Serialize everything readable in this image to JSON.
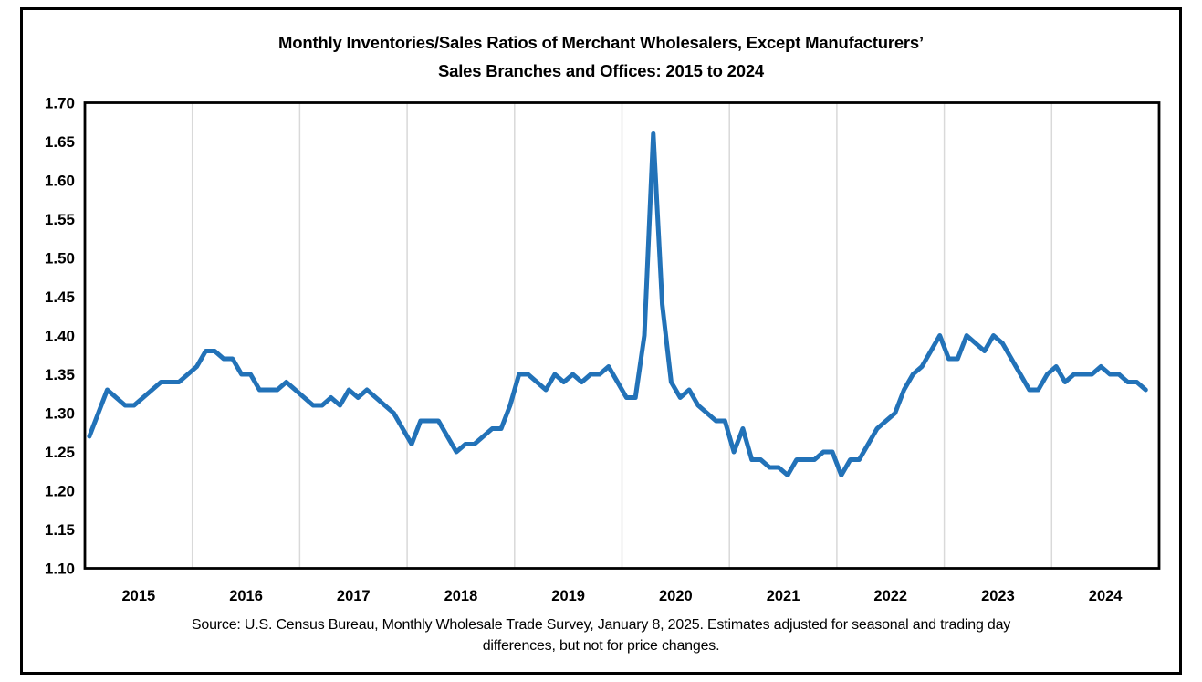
{
  "figure": {
    "title_line1": "Monthly Inventories/Sales Ratios of Merchant Wholesalers, Except Manufacturers’",
    "title_line2": "Sales Branches and Offices: 2015 to 2024",
    "source_line1": "Source: U.S. Census Bureau, Monthly Wholesale Trade Survey, January 8, 2025. Estimates adjusted for seasonal and trading day",
    "source_line2": "differences, but not for price changes."
  },
  "chart_data": {
    "type": "line",
    "title": "Monthly Inventories/Sales Ratios of Merchant Wholesalers, Except Manufacturers’ Sales Branches and Offices: 2015 to 2024",
    "xlabel": "",
    "ylabel": "",
    "ylim": [
      1.1,
      1.7
    ],
    "ytick_step": 0.05,
    "y_ticks": [
      "1.70",
      "1.65",
      "1.60",
      "1.55",
      "1.50",
      "1.45",
      "1.40",
      "1.35",
      "1.30",
      "1.25",
      "1.20",
      "1.15",
      "1.10"
    ],
    "x_ticks": [
      "2015",
      "2016",
      "2017",
      "2018",
      "2019",
      "2020",
      "2021",
      "2022",
      "2023",
      "2024"
    ],
    "grid": "vertical-year-gridlines",
    "legend": "none",
    "line_color": "#2272B8",
    "grid_color": "#D9D9D9",
    "frame_color": "#000000",
    "start_month": "2015-01",
    "end_month": "2024-11",
    "series": [
      {
        "name": "Inventories/Sales Ratio",
        "values": [
          1.27,
          1.3,
          1.33,
          1.32,
          1.31,
          1.31,
          1.32,
          1.33,
          1.34,
          1.34,
          1.34,
          1.35,
          1.36,
          1.38,
          1.38,
          1.37,
          1.37,
          1.35,
          1.35,
          1.33,
          1.33,
          1.33,
          1.34,
          1.33,
          1.32,
          1.31,
          1.31,
          1.32,
          1.31,
          1.33,
          1.32,
          1.33,
          1.32,
          1.31,
          1.3,
          1.28,
          1.26,
          1.29,
          1.29,
          1.29,
          1.27,
          1.25,
          1.26,
          1.26,
          1.27,
          1.28,
          1.28,
          1.31,
          1.35,
          1.35,
          1.34,
          1.33,
          1.35,
          1.34,
          1.35,
          1.34,
          1.35,
          1.35,
          1.36,
          1.34,
          1.32,
          1.32,
          1.4,
          1.66,
          1.44,
          1.34,
          1.32,
          1.33,
          1.31,
          1.3,
          1.29,
          1.29,
          1.25,
          1.28,
          1.24,
          1.24,
          1.23,
          1.23,
          1.22,
          1.24,
          1.24,
          1.24,
          1.25,
          1.25,
          1.22,
          1.24,
          1.24,
          1.26,
          1.28,
          1.29,
          1.3,
          1.33,
          1.35,
          1.36,
          1.38,
          1.4,
          1.37,
          1.37,
          1.4,
          1.39,
          1.38,
          1.4,
          1.39,
          1.37,
          1.35,
          1.33,
          1.33,
          1.35,
          1.36,
          1.34,
          1.35,
          1.35,
          1.35,
          1.36,
          1.35,
          1.35,
          1.34,
          1.34,
          1.33
        ]
      }
    ]
  }
}
